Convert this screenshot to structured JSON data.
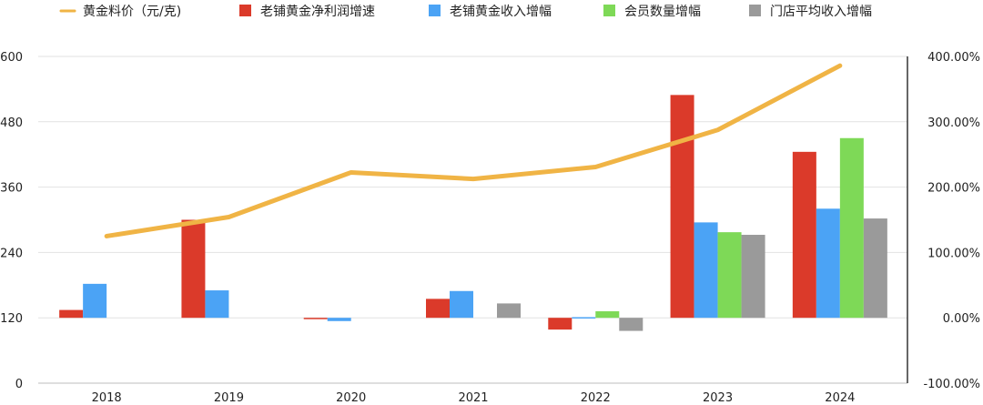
{
  "chart_data": {
    "type": "bar",
    "title": "",
    "categories": [
      "2018",
      "2019",
      "2020",
      "2021",
      "2022",
      "2023",
      "2024"
    ],
    "legend": [
      {
        "name": "黄金料价（元/克)",
        "color": "#F0B445",
        "kind": "line"
      },
      {
        "name": "老铺黄金净利润增速",
        "color": "#DB3A2A",
        "kind": "bar"
      },
      {
        "name": "老铺黄金收入增幅",
        "color": "#4BA3F5",
        "kind": "bar"
      },
      {
        "name": "会员数量增幅",
        "color": "#7ED957",
        "kind": "bar"
      },
      {
        "name": "门店平均收入增幅",
        "color": "#9A9A9A",
        "kind": "bar"
      }
    ],
    "bar_series": [
      {
        "name": "老铺黄金净利润增速",
        "color": "#DB3A2A",
        "values": [
          12.0,
          150.0,
          -2.0,
          29.0,
          -18.0,
          341.0,
          254.0
        ]
      },
      {
        "name": "老铺黄金收入增幅",
        "color": "#4BA3F5",
        "values": [
          52.0,
          42.0,
          -5.0,
          41.0,
          1.0,
          146.0,
          167.0
        ]
      },
      {
        "name": "会员数量增幅",
        "color": "#7ED957",
        "values": [
          null,
          null,
          null,
          null,
          10.0,
          131.0,
          275.0
        ]
      },
      {
        "name": "门店平均收入增幅",
        "color": "#9A9A9A",
        "values": [
          null,
          null,
          null,
          22.0,
          -20.0,
          127.0,
          152.0
        ]
      }
    ],
    "line_series": {
      "name": "黄金料价（元/克)",
      "color": "#F0B445",
      "values": [
        270,
        305,
        387,
        375,
        397,
        465,
        583
      ]
    },
    "y_left": {
      "ticks": [
        "0",
        "120",
        "240",
        "360",
        "480",
        "600"
      ],
      "ylim": [
        0,
        600
      ]
    },
    "y_right": {
      "ticks": [
        "-100.00%",
        "0.00%",
        "100.00%",
        "200.00%",
        "300.00%",
        "400.00%"
      ],
      "ylim": [
        -100,
        400
      ]
    },
    "grid": true,
    "legend_position": "top"
  }
}
